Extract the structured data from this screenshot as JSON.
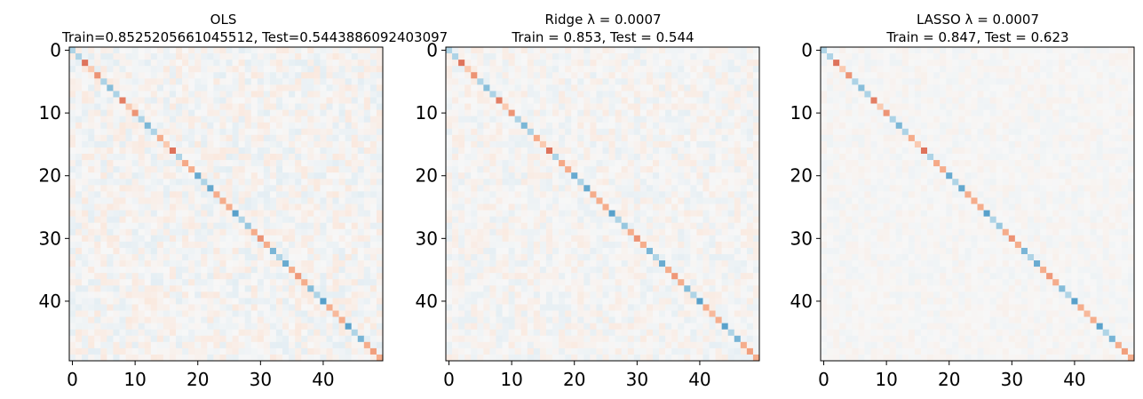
{
  "chart_data": [
    {
      "type": "heatmap",
      "title_line1": "OLS",
      "title_line2": "Train=0.8525205661045512, Test=0.5443886092403097",
      "xlabel": "",
      "ylabel": "",
      "rows": 50,
      "cols": 50,
      "xticks": [
        0,
        10,
        20,
        30,
        40
      ],
      "yticks": [
        0,
        10,
        20,
        30,
        40
      ],
      "colormap": "RdBu",
      "description_of_values": "lag-1 coupling matrix: alternating positive/negative values on the main diagonal with small noise elsewhere",
      "noise_level": 0.13
    },
    {
      "type": "heatmap",
      "title_line1": "Ridge λ = 0.0007",
      "title_line2": "Train = 0.853, Test = 0.544",
      "xlabel": "",
      "ylabel": "",
      "rows": 50,
      "cols": 50,
      "xticks": [
        0,
        10,
        20,
        30,
        40
      ],
      "yticks": [
        0,
        10,
        20,
        30,
        40
      ],
      "colormap": "RdBu",
      "noise_level": 0.11
    },
    {
      "type": "heatmap",
      "title_line1": "LASSO λ = 0.0007",
      "title_line2": "Train = 0.847, Test = 0.623",
      "xlabel": "",
      "ylabel": "",
      "rows": 50,
      "cols": 50,
      "xticks": [
        0,
        10,
        20,
        30,
        40
      ],
      "yticks": [
        0,
        10,
        20,
        30,
        40
      ],
      "colormap": "RdBu",
      "noise_level": 0.06
    }
  ],
  "colors": {
    "strong_red": "#d6604d",
    "mid_red": "#f4a582",
    "light_red": "#fddbc7",
    "neutral": "#f7f7f7",
    "light_blue": "#d1e5f0",
    "mid_blue": "#92c5de",
    "strong_blue": "#4393c3"
  }
}
